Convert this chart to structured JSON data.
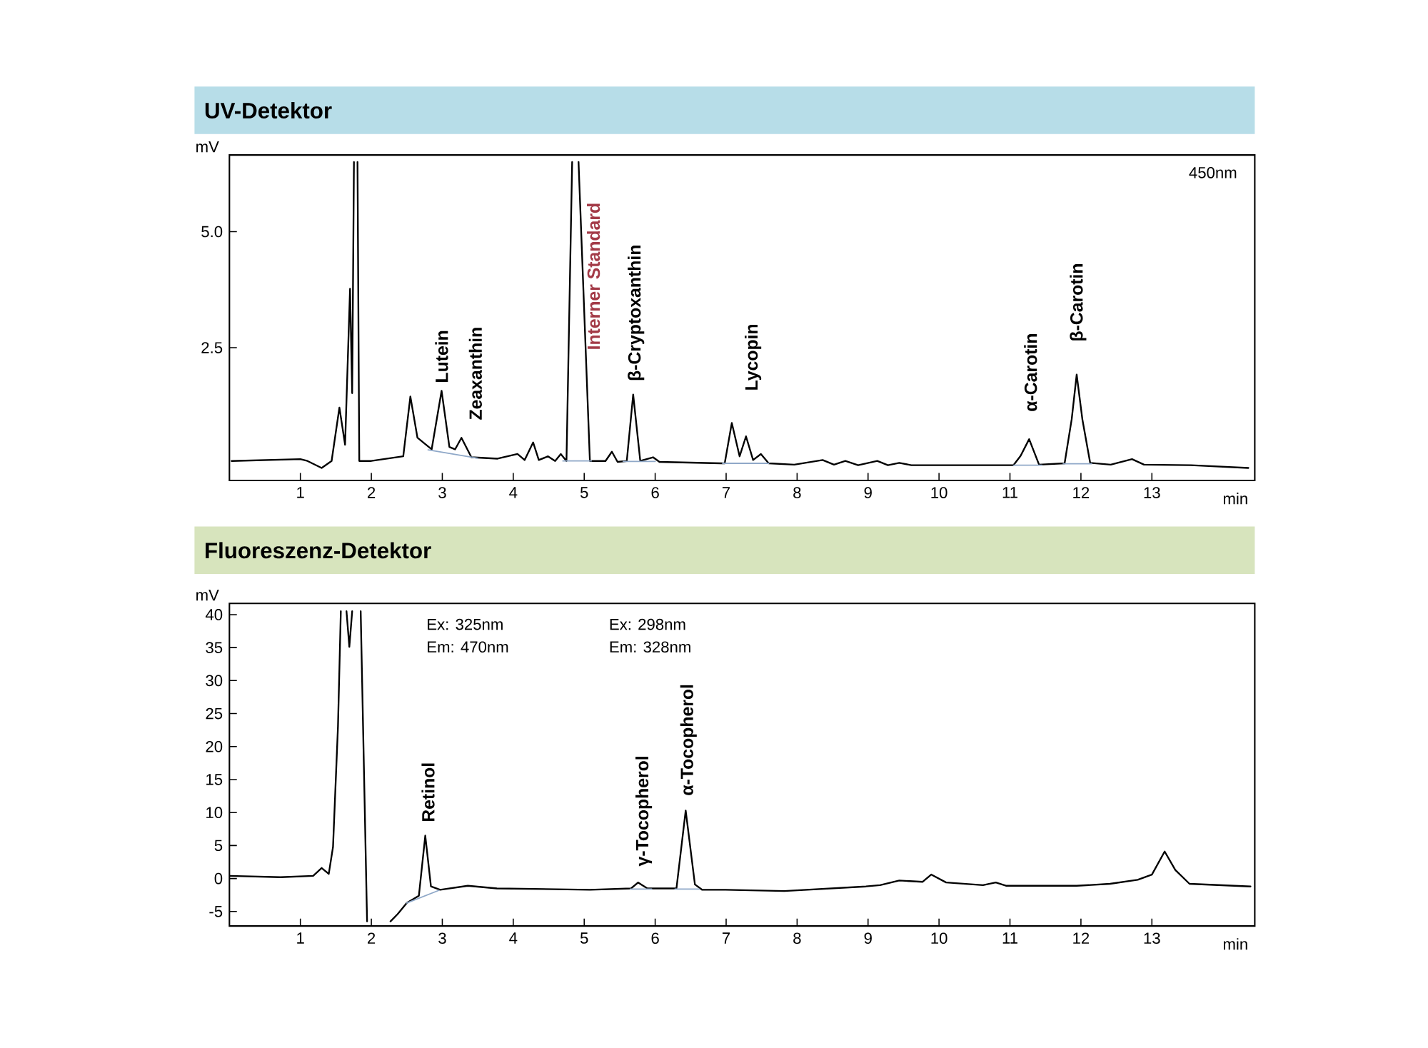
{
  "chart_data": [
    {
      "type": "line",
      "title": "UV-Detektor",
      "xlabel": "min",
      "ylabel": "mV",
      "xlim": [
        0,
        14.45
      ],
      "ylim": [
        -0.36,
        6.65
      ],
      "xticks": [
        1,
        2,
        3,
        4,
        5,
        6,
        7,
        8,
        9,
        10,
        11,
        12,
        13
      ],
      "yticks": [
        2.5,
        {
          "value": 5,
          "label": "5.0"
        }
      ],
      "annotations": [
        {
          "text": "Lutein",
          "x": 2.99,
          "y": 1.57
        },
        {
          "text": "Zeaxanthin",
          "x": 3.27,
          "y": 0.56
        },
        {
          "text": "Interner Standard",
          "x": 5.13,
          "y": 2.4
        },
        {
          "text": "β-Cryptoxanthin",
          "x": 5.69,
          "y": 1.49
        },
        {
          "text": "Lycopin",
          "x": 7.28,
          "y": 0.59
        },
        {
          "text": "α-Carotin",
          "x": 11.27,
          "y": 0.53
        },
        {
          "text": "β-Carotin",
          "x": 11.94,
          "y": 1.92
        },
        "450nm"
      ],
      "x": [
        0.03,
        1.0,
        1.1,
        1.3,
        1.44,
        1.55,
        1.63,
        1.7,
        1.73,
        1.755,
        1.78,
        1.805,
        1.83,
        2.0,
        2.45,
        2.55,
        2.65,
        2.85,
        2.99,
        3.1,
        3.18,
        3.27,
        3.41,
        3.78,
        4.06,
        4.16,
        4.28,
        4.36,
        4.49,
        4.59,
        4.67,
        4.75,
        4.83,
        4.875,
        4.92,
        5.08,
        5.3,
        5.39,
        5.47,
        5.6,
        5.69,
        5.79,
        5.97,
        6.06,
        6.92,
        6.98,
        7.08,
        7.19,
        7.28,
        7.38,
        7.49,
        7.6,
        7.96,
        8.36,
        8.52,
        8.68,
        8.86,
        9.13,
        9.28,
        9.44,
        9.61,
        11.05,
        11.15,
        11.27,
        11.41,
        11.77,
        11.87,
        11.94,
        12.02,
        12.13,
        12.42,
        12.72,
        12.89,
        13.55,
        14.36
      ],
      "series": [
        {
          "color": "#000000",
          "values": [
            0.06,
            0.1,
            0.06,
            -0.09,
            0.06,
            1.21,
            0.41,
            3.77,
            1.52,
            6.5,
            null,
            6.5,
            0.06,
            0.06,
            0.16,
            1.45,
            0.56,
            0.31,
            1.57,
            0.36,
            0.31,
            0.56,
            0.14,
            0.11,
            0.21,
            0.08,
            0.46,
            0.08,
            0.16,
            0.06,
            0.21,
            0.06,
            6.5,
            null,
            6.5,
            0.06,
            0.06,
            0.26,
            0.04,
            0.06,
            1.49,
            0.06,
            0.14,
            0.04,
            0.01,
            0.01,
            0.88,
            0.16,
            0.59,
            0.08,
            0.21,
            0.01,
            -0.02,
            0.08,
            -0.02,
            0.06,
            -0.03,
            0.06,
            -0.03,
            0.02,
            -0.03,
            -0.03,
            0.17,
            0.53,
            -0.02,
            0.01,
            0.96,
            1.92,
            0.96,
            0.02,
            -0.02,
            0.1,
            -0.02,
            -0.03,
            -0.09
          ]
        },
        {
          "color": "#8fa8c8",
          "x": [
            2.8,
            3.5,
            3.6,
            4.7,
            5.1,
            5.2,
            5.55,
            6.0,
            6.5,
            6.95,
            7.6,
            8.0,
            11.05,
            11.45,
            11.6,
            11.75,
            12.15
          ],
          "values": [
            0.3,
            0.12,
            null,
            0.06,
            0.06,
            null,
            0.05,
            0.05,
            null,
            0.01,
            0.01,
            null,
            -0.03,
            -0.03,
            null,
            0.0,
            0.0
          ]
        }
      ]
    },
    {
      "type": "line",
      "title": "Fluoreszenz-Detektor",
      "xlabel": "min",
      "ylabel": "mV",
      "xlim": [
        0,
        14.45
      ],
      "ylim": [
        -7.2,
        41.7
      ],
      "xticks": [
        1,
        2,
        3,
        4,
        5,
        6,
        7,
        8,
        9,
        10,
        11,
        12,
        13
      ],
      "yticks": [
        -5,
        0,
        5,
        10,
        15,
        20,
        25,
        30,
        35,
        40
      ],
      "annotations": [
        {
          "text": "Retinol",
          "x": 2.76,
          "y": 6.5
        },
        {
          "text": "γ-Tocopherol",
          "x": 5.76,
          "y": -0.6
        },
        {
          "text": "α-Tocopherol",
          "x": 6.43,
          "y": 10.3
        },
        "Ex: 325nm",
        "Em: 470nm",
        "Ex: 298nm",
        "Em: 328nm"
      ],
      "x": [
        0.0,
        0.72,
        1.18,
        1.3,
        1.4,
        1.46,
        1.53,
        1.57,
        1.61,
        1.65,
        1.69,
        1.73,
        1.79,
        1.85,
        1.94,
        2.0,
        2.27,
        2.37,
        2.5,
        2.67,
        2.76,
        2.84,
        2.97,
        3.36,
        3.77,
        5.08,
        5.66,
        5.76,
        5.89,
        6.3,
        6.43,
        6.56,
        6.66,
        6.99,
        7.82,
        8.97,
        9.17,
        9.44,
        9.77,
        9.89,
        10.1,
        10.62,
        10.8,
        10.95,
        11.94,
        12.41,
        12.8,
        13.0,
        13.18,
        13.33,
        13.53,
        14.39
      ],
      "series": [
        {
          "color": "#000000",
          "values": [
            0.4,
            0.2,
            0.4,
            1.6,
            0.7,
            4.8,
            23.1,
            40.5,
            null,
            40.5,
            35.1,
            40.5,
            null,
            40.5,
            -6.5,
            null,
            -6.5,
            -5.4,
            -3.7,
            -2.6,
            6.5,
            -1.2,
            -1.7,
            -1.1,
            -1.5,
            -1.7,
            -1.5,
            -0.6,
            -1.5,
            -1.5,
            10.3,
            -0.9,
            -1.7,
            -1.7,
            -1.9,
            -1.2,
            -1.0,
            -0.3,
            -0.5,
            0.6,
            -0.6,
            -1.0,
            -0.6,
            -1.1,
            -1.1,
            -0.8,
            -0.2,
            0.6,
            4.1,
            1.3,
            -0.8,
            -1.2
          ]
        },
        {
          "color": "#8fa8c8",
          "x": [
            2.5,
            2.95,
            3.0,
            5.65,
            5.95,
            6.0,
            6.28,
            6.62
          ],
          "values": [
            -3.7,
            -1.8,
            null,
            -1.6,
            -1.6,
            null,
            -1.6,
            -1.6
          ]
        }
      ]
    }
  ]
}
